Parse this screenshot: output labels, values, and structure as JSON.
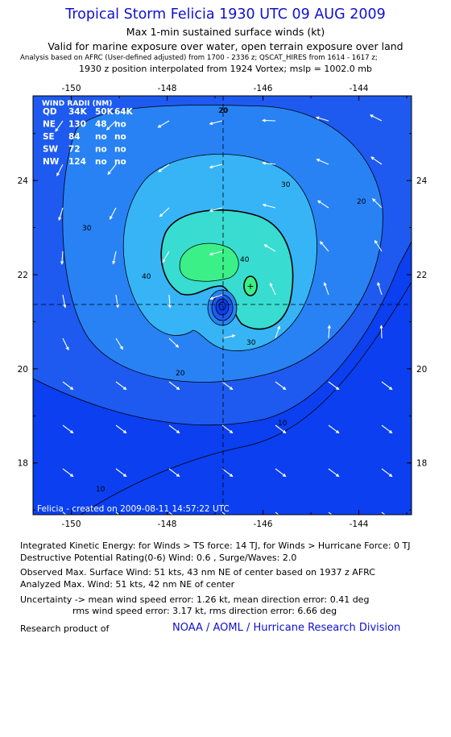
{
  "header": {
    "title": "Tropical Storm Felicia 1930 UTC 09 AUG 2009",
    "line1": "Max 1-min sustained surface winds (kt)",
    "line2": "Valid for marine exposure over water, open terrain exposure over land",
    "line3": "Analysis based on  AFRC (User-defined adjusted) from 1700 - 2336 z;  QSCAT_HIRES from 1614 - 1617 z;",
    "line4": "1930 z position interpolated from 1924 Vortex; mslp = 1002.0 mb"
  },
  "chart_data": {
    "type": "contour",
    "x_ticks": [
      "-150",
      "-148",
      "-146",
      "-144"
    ],
    "y_ticks": [
      "24",
      "22",
      "20",
      "18"
    ],
    "xlim": [
      -150.8,
      -142.9
    ],
    "ylim": [
      16.9,
      25.8
    ],
    "storm_center": {
      "lon": -146.9,
      "lat": 20.9
    },
    "contour_levels": [
      10,
      20,
      30,
      40,
      50
    ],
    "contour_labels": [
      "20",
      "30",
      "40",
      "20",
      "30",
      "40",
      "30",
      "20",
      "10",
      "10",
      "20"
    ],
    "max_wind_marker": "+",
    "colors": {
      "frame_bg": "#0b3ff0",
      "level_10": "#1e5af0",
      "level_20": "#2882f4",
      "level_30": "#36b4f6",
      "level_40": "#38dcd0",
      "level_50": "#3cf088",
      "contour_line": "#000000",
      "arrow": "#ffffff"
    },
    "wind_radii": {
      "title": "WIND RADII (NM)",
      "header": [
        "QD",
        "34K",
        "50K",
        "64K"
      ],
      "rows": [
        [
          "NE",
          "130",
          "48",
          "no"
        ],
        [
          "SE",
          "84",
          "no",
          "no"
        ],
        [
          "SW",
          "72",
          "no",
          "no"
        ],
        [
          "NW",
          "124",
          "no",
          "no"
        ]
      ]
    },
    "credit": "Felicia - created on 2009-08-11 14:57:22 UTC"
  },
  "footer": {
    "ike": "Integrated Kinetic Energy:  for Winds > TS force: 14 TJ,  for Winds > Hurricane Force: 0 TJ",
    "dpr": "Destructive Potential Rating(0-6)   Wind: 0.6 , Surge/Waves: 2.0",
    "obs_max": "Observed Max. Surface Wind: 51 kts, 43 nm NE of center based on 1937 z AFRC",
    "ana_max": "Analyzed Max. Wind: 51 kts, 42 nm NE of center",
    "unc1": "Uncertainty -> mean wind speed error: 1.26 kt,   mean direction error: 0.41 deg",
    "unc2": "rms wind speed error: 3.17 kt,   rms direction error: 6.66 deg",
    "research": "Research product of",
    "org": "NOAA / AOML / Hurricane Research Division"
  }
}
